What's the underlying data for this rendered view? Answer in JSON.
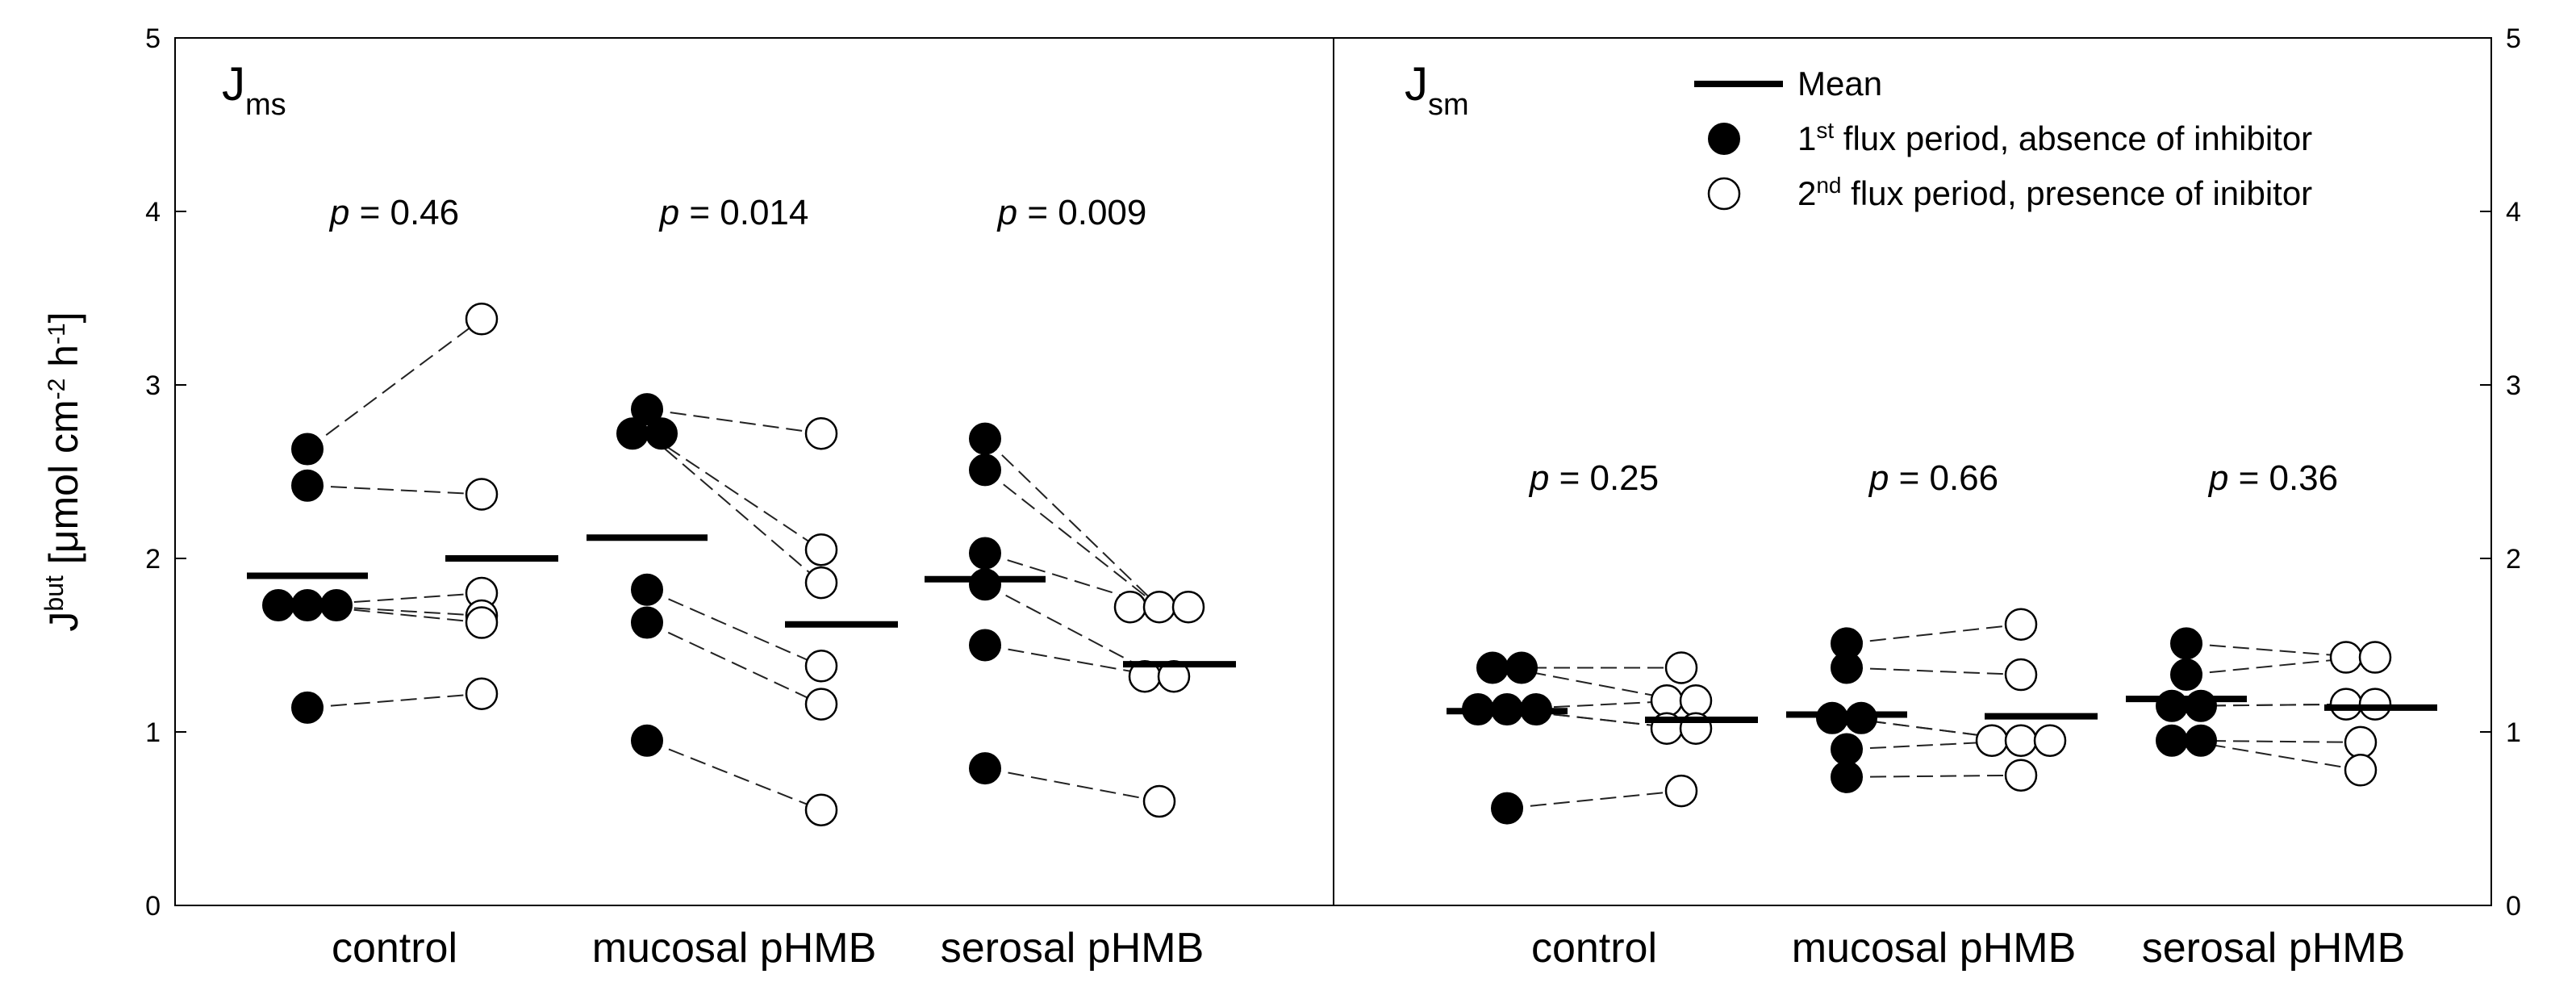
{
  "chart_data": {
    "type": "scatter",
    "ylabel": {
      "base": "J",
      "base_sup": "but",
      "unit_open": " [μmol cm",
      "exp1": "-2",
      "mid": " h",
      "exp2": "-1",
      "close": "]"
    },
    "ylim": [
      0,
      5
    ],
    "yticks": [
      "0",
      "1",
      "2",
      "3",
      "4",
      "5"
    ],
    "legend": {
      "position": "top-right",
      "mean": "Mean",
      "first": {
        "ord": "1",
        "sup": "st",
        "text": " flux period, absence of inhibitor"
      },
      "second": {
        "ord": "2",
        "sup": "nd",
        "text": " flux period, presence of inibitor"
      }
    },
    "panels": [
      {
        "label_main": "J",
        "label_sub": "ms",
        "groups": [
          {
            "category": "control",
            "p_italic": "p",
            "p_rest": " = 0.46",
            "p_y": 4.0,
            "period1_mean": 1.9,
            "period2_mean": 2.0,
            "pairs": [
              [
                2.63,
                3.38
              ],
              [
                2.42,
                2.37
              ],
              [
                1.73,
                1.8
              ],
              [
                1.73,
                1.67
              ],
              [
                1.73,
                1.63
              ],
              [
                1.14,
                1.22
              ]
            ]
          },
          {
            "category": "mucosal pHMB",
            "p_italic": "p",
            "p_rest": " = 0.014",
            "p_y": 4.0,
            "period1_mean": 2.12,
            "period2_mean": 1.62,
            "pairs": [
              [
                2.86,
                2.72
              ],
              [
                2.72,
                2.05
              ],
              [
                2.72,
                1.86
              ],
              [
                1.82,
                1.38
              ],
              [
                1.63,
                1.16
              ],
              [
                0.95,
                0.55
              ]
            ]
          },
          {
            "category": "serosal pHMB",
            "p_italic": "p",
            "p_rest": " = 0.009",
            "p_y": 4.0,
            "period1_mean": 1.88,
            "period2_mean": 1.39,
            "pairs": [
              [
                2.69,
                1.72
              ],
              [
                2.51,
                1.72
              ],
              [
                2.03,
                1.72
              ],
              [
                1.85,
                1.32
              ],
              [
                1.5,
                1.32
              ],
              [
                0.79,
                0.6
              ]
            ]
          }
        ]
      },
      {
        "label_main": "J",
        "label_sub": "sm",
        "groups": [
          {
            "category": "control",
            "p_italic": "p",
            "p_rest": " = 0.25",
            "p_y": 2.47,
            "period1_mean": 1.12,
            "period2_mean": 1.07,
            "pairs": [
              [
                1.37,
                1.37
              ],
              [
                1.37,
                1.18
              ],
              [
                1.13,
                1.18
              ],
              [
                1.13,
                1.02
              ],
              [
                1.13,
                1.02
              ],
              [
                0.56,
                0.66
              ]
            ]
          },
          {
            "category": "mucosal pHMB",
            "p_italic": "p",
            "p_rest": " = 0.66",
            "p_y": 2.47,
            "period1_mean": 1.1,
            "period2_mean": 1.09,
            "pairs": [
              [
                1.51,
                1.62
              ],
              [
                1.37,
                1.33
              ],
              [
                1.08,
                0.95
              ],
              [
                1.08,
                0.95
              ],
              [
                0.9,
                0.95
              ],
              [
                0.74,
                0.75
              ]
            ]
          },
          {
            "category": "serosal pHMB",
            "p_italic": "p",
            "p_rest": " = 0.36",
            "p_y": 2.47,
            "period1_mean": 1.19,
            "period2_mean": 1.14,
            "pairs": [
              [
                1.51,
                1.43
              ],
              [
                1.33,
                1.43
              ],
              [
                1.15,
                1.16
              ],
              [
                1.15,
                1.16
              ],
              [
                0.95,
                0.94
              ],
              [
                0.95,
                0.78
              ]
            ]
          }
        ]
      }
    ]
  }
}
